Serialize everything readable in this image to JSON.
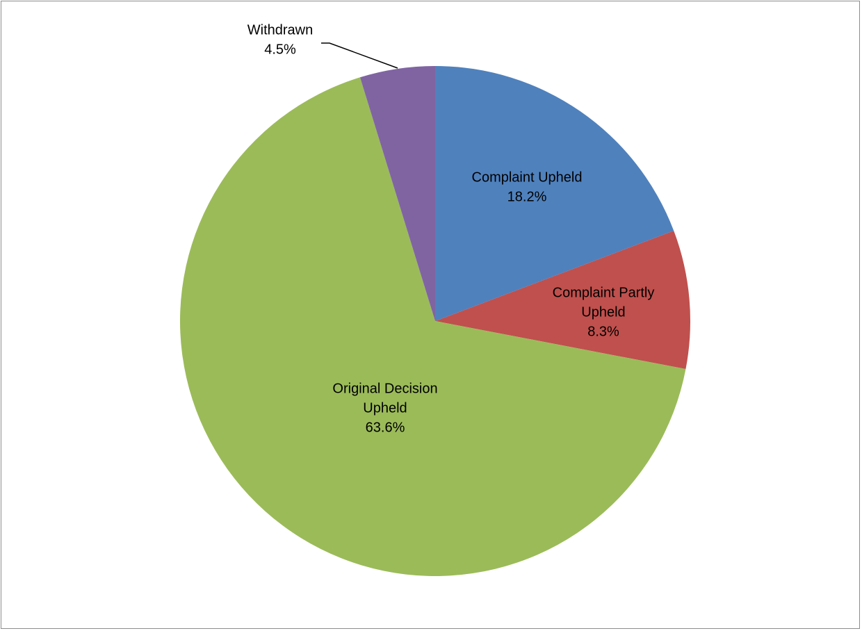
{
  "chart_data": {
    "type": "pie",
    "categories": [
      "Complaint Upheld",
      "Complaint Partly Upheld",
      "Original Decision Upheld",
      "Withdrawn"
    ],
    "values": [
      18.2,
      8.3,
      63.6,
      4.5
    ],
    "value_labels": [
      "18.2%",
      "8.3%",
      "63.6%",
      "4.5%"
    ],
    "colors": [
      "#4f81bd",
      "#c0504d",
      "#9bbb59",
      "#8064a2"
    ],
    "start_angle_deg": 0,
    "direction": "clockwise",
    "legend": "none",
    "data_labels": [
      {
        "lines": [
          "Complaint Upheld",
          "18.2%"
        ]
      },
      {
        "lines": [
          "Complaint Partly",
          "Upheld",
          "8.3%"
        ]
      },
      {
        "lines": [
          "Original Decision",
          "Upheld",
          "63.6%"
        ]
      },
      {
        "lines": [
          "Withdrawn",
          "4.5%"
        ]
      }
    ]
  }
}
